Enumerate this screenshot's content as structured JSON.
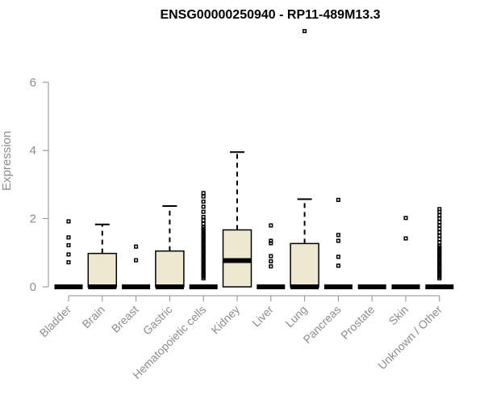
{
  "chart_data": {
    "type": "boxplot",
    "title": "ENSG00000250940 - RP11-489M13.3",
    "ylabel": "Expression",
    "xlabel": "",
    "ylim": [
      0,
      6.5
    ],
    "yticks": [
      0,
      2,
      4,
      6
    ],
    "box_color": "#efe8d0",
    "categories": [
      "Bladder",
      "Brain",
      "Breast",
      "Gastric",
      "Hematopoietic cells",
      "Kidney",
      "Liver",
      "Lung",
      "Pancreas",
      "Prostate",
      "Skin",
      "Unknown / Other"
    ],
    "boxes": [
      {
        "q1": 0,
        "median": 0,
        "q3": 0,
        "whisker_low": 0,
        "whisker_high": 0,
        "outliers": [
          0.72,
          0.95,
          1.22,
          1.45,
          1.92
        ]
      },
      {
        "q1": 0,
        "median": 0,
        "q3": 0.98,
        "whisker_low": 0,
        "whisker_high": 1.83,
        "outliers": []
      },
      {
        "q1": 0,
        "median": 0,
        "q3": 0,
        "whisker_low": 0,
        "whisker_high": 0,
        "outliers": [
          0.78,
          1.18
        ]
      },
      {
        "q1": 0,
        "median": 0,
        "q3": 1.05,
        "whisker_low": 0,
        "whisker_high": 2.37,
        "outliers": []
      },
      {
        "q1": 0,
        "median": 0,
        "q3": 0,
        "whisker_low": 0,
        "whisker_high": 0,
        "outliers": [
          0.25,
          0.3,
          0.35,
          0.4,
          0.45,
          0.5,
          0.55,
          0.6,
          0.65,
          0.7,
          0.75,
          0.8,
          0.85,
          0.9,
          0.95,
          1.0,
          1.05,
          1.1,
          1.15,
          1.2,
          1.25,
          1.3,
          1.35,
          1.4,
          1.45,
          1.5,
          1.55,
          1.6,
          1.65,
          1.7,
          1.75,
          1.85,
          1.95,
          2.05,
          2.2,
          2.35,
          2.5,
          2.65,
          2.75
        ]
      },
      {
        "q1": 0,
        "median": 0.77,
        "q3": 1.67,
        "whisker_low": 0,
        "whisker_high": 3.95,
        "outliers": []
      },
      {
        "q1": 0,
        "median": 0,
        "q3": 0,
        "whisker_low": 0,
        "whisker_high": 0,
        "outliers": [
          0.6,
          0.75,
          0.9,
          1.28,
          1.35,
          1.8
        ]
      },
      {
        "q1": 0,
        "median": 0,
        "q3": 1.27,
        "whisker_low": 0,
        "whisker_high": 2.57,
        "outliers": [
          7.5
        ]
      },
      {
        "q1": 0,
        "median": 0,
        "q3": 0,
        "whisker_low": 0,
        "whisker_high": 0,
        "outliers": [
          0.62,
          0.88,
          1.35,
          1.52,
          2.55
        ]
      },
      {
        "q1": 0,
        "median": 0,
        "q3": 0,
        "whisker_low": 0,
        "whisker_high": 0,
        "outliers": []
      },
      {
        "q1": 0,
        "median": 0,
        "q3": 0,
        "whisker_low": 0,
        "whisker_high": 0,
        "outliers": [
          1.42,
          2.02
        ]
      },
      {
        "q1": 0,
        "median": 0,
        "q3": 0,
        "whisker_low": 0,
        "whisker_high": 0,
        "outliers": [
          0.25,
          0.3,
          0.35,
          0.4,
          0.45,
          0.5,
          0.55,
          0.6,
          0.65,
          0.7,
          0.75,
          0.8,
          0.85,
          0.9,
          0.95,
          1.0,
          1.05,
          1.1,
          1.15,
          1.2,
          1.3,
          1.4,
          1.5,
          1.6,
          1.7,
          1.8,
          1.9,
          2.0,
          2.1,
          2.2,
          2.28
        ]
      }
    ]
  }
}
